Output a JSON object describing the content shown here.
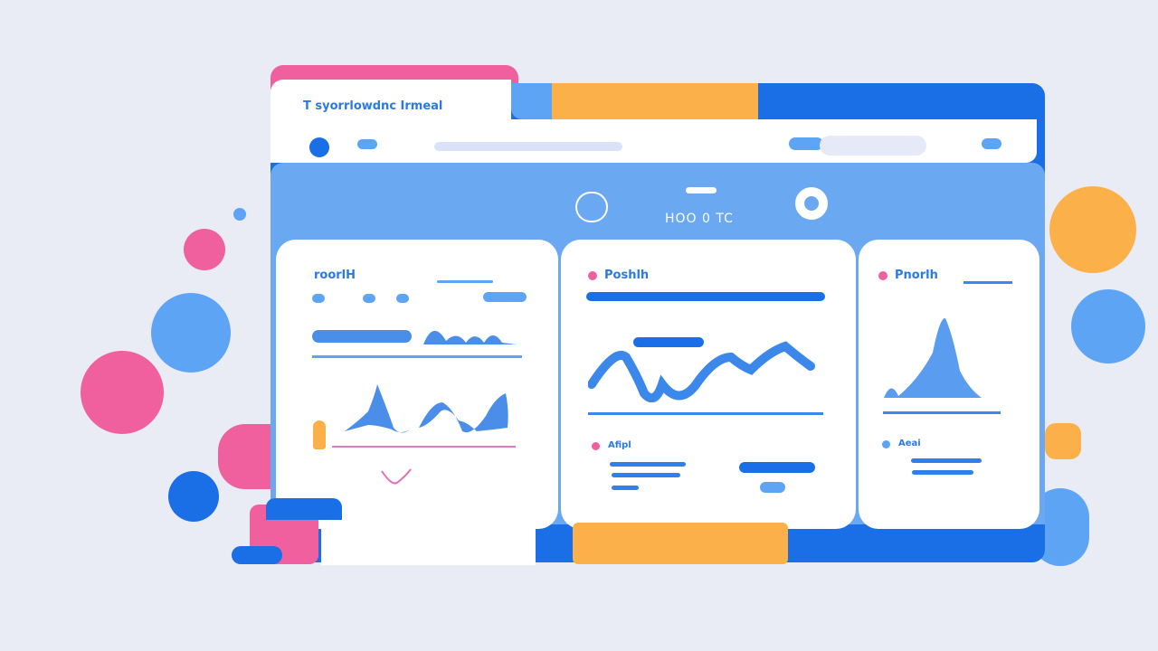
{
  "window": {
    "title": "T syorrlowdnc Irmeal"
  },
  "hero": {
    "label": "HOO 0 TC"
  },
  "cards": [
    {
      "title": "roorlH"
    },
    {
      "title": "Poshlh",
      "legend": "Afipl"
    },
    {
      "title": "Pnorlh",
      "legend": "Aeai"
    }
  ],
  "colors": {
    "primary": "#1a6ee6",
    "light_blue": "#5ea4f5",
    "pink": "#f0609e",
    "orange": "#fbb04a",
    "background": "#e9ebf5"
  }
}
